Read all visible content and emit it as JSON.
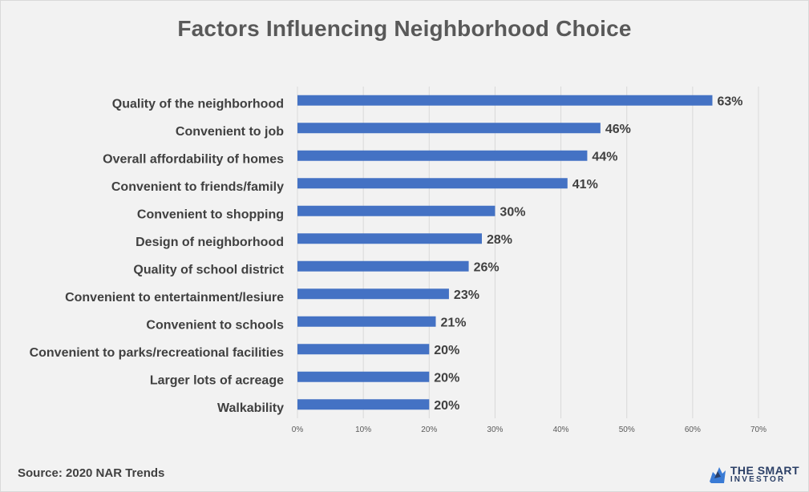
{
  "title": "Factors Influencing Neighborhood Choice",
  "source": "Source:  2020 NAR Trends",
  "logo": {
    "line1": "THE SMART",
    "line2": "INVESTOR",
    "icon": "bull-logo-icon",
    "color": "#2b3f66"
  },
  "colors": {
    "bar": "#4472c4",
    "grid": "#d9d9d9",
    "background": "#f2f2f2"
  },
  "chart_data": {
    "type": "bar",
    "orientation": "horizontal",
    "title": "Factors Influencing Neighborhood Choice",
    "categories": [
      "Quality of the neighborhood",
      "Convenient to job",
      "Overall affordability of homes",
      "Convenient to friends/family",
      "Convenient to shopping",
      "Design of neighborhood",
      "Quality of school district",
      "Convenient to entertainment/lesiure",
      "Convenient to schools",
      "Convenient to parks/recreational facilities",
      "Larger lots of acreage",
      "Walkability"
    ],
    "values": [
      63,
      46,
      44,
      41,
      30,
      28,
      26,
      23,
      21,
      20,
      20,
      20
    ],
    "value_labels": [
      "63%",
      "46%",
      "44%",
      "41%",
      "30%",
      "28%",
      "26%",
      "23%",
      "21%",
      "20%",
      "20%",
      "20%"
    ],
    "xlim": [
      0,
      70
    ],
    "x_ticks": [
      0,
      10,
      20,
      30,
      40,
      50,
      60,
      70
    ],
    "x_tick_labels": [
      "0%",
      "10%",
      "20%",
      "30%",
      "40%",
      "50%",
      "60%",
      "70%"
    ],
    "grid": "vertical",
    "legend": "none"
  }
}
